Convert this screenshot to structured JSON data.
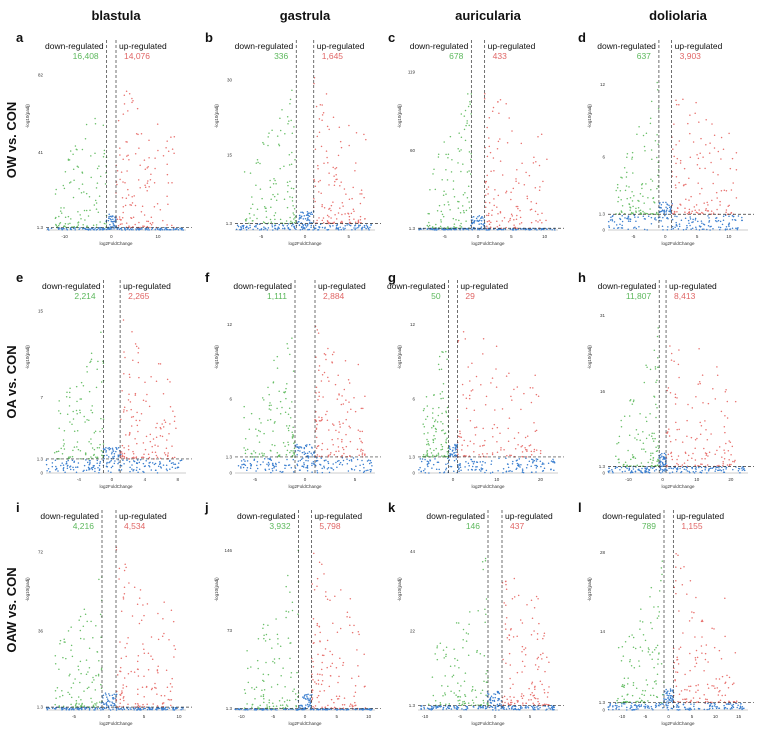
{
  "columns": [
    "blastula",
    "gastrula",
    "auricularia",
    "doliolaria"
  ],
  "rows": [
    "OW vs. CON",
    "OA vs. CON",
    "OAW vs. CON"
  ],
  "labels": {
    "down": "down-regulated",
    "up": "up-regulated"
  },
  "colors": {
    "down": "#6abf69",
    "up": "#e8726f",
    "ns": "#3b7fcf",
    "text_down": "#5cb85c",
    "text_up": "#e06666"
  },
  "chart_data": [
    {
      "type": "scatter",
      "panel": "a",
      "row": "OW vs. CON",
      "column": "blastula",
      "down_count": "16,408",
      "up_count": "14,076",
      "xlabel": "log2FoldChange",
      "ylabel": "-log10(padj)",
      "xticks": [
        "-10",
        "0",
        "10"
      ],
      "yticks": [
        "1.3",
        "41",
        "82"
      ],
      "xlim": [
        -14,
        16
      ],
      "ylim": [
        0,
        90
      ],
      "threshold_x": [
        -1,
        1
      ],
      "threshold_y": 1.3
    },
    {
      "type": "scatter",
      "panel": "b",
      "row": "OW vs. CON",
      "column": "gastrula",
      "down_count": "336",
      "up_count": "1,645",
      "xlabel": "log2FoldChange",
      "ylabel": "-log10(padj)",
      "xticks": [
        "-5",
        "0",
        "5"
      ],
      "yticks": [
        "1.3",
        "15",
        "30"
      ],
      "xlim": [
        -8,
        8
      ],
      "ylim": [
        0,
        34
      ],
      "threshold_x": [
        -1,
        1
      ],
      "threshold_y": 1.3
    },
    {
      "type": "scatter",
      "panel": "c",
      "row": "OW vs. CON",
      "column": "auricularia",
      "down_count": "678",
      "up_count": "433",
      "xlabel": "log2FoldChange",
      "ylabel": "-log10(padj)",
      "xticks": [
        "-5",
        "0",
        "5",
        "10"
      ],
      "yticks": [
        "1.3",
        "60",
        "119"
      ],
      "xlim": [
        -9,
        12
      ],
      "ylim": [
        0,
        128
      ],
      "threshold_x": [
        -1,
        1
      ],
      "threshold_y": 1.3
    },
    {
      "type": "scatter",
      "panel": "d",
      "row": "OW vs. CON",
      "column": "doliolaria",
      "down_count": "637",
      "up_count": "3,903",
      "xlabel": "log2FoldChange",
      "ylabel": "-log10(padj)",
      "xticks": [
        "-5",
        "0",
        "5",
        "10"
      ],
      "yticks": [
        "0",
        "1.3",
        "6",
        "12"
      ],
      "xlim": [
        -9,
        13
      ],
      "ylim": [
        0,
        14
      ],
      "threshold_x": [
        -1,
        1
      ],
      "threshold_y": 1.3
    },
    {
      "type": "scatter",
      "panel": "e",
      "row": "OA vs. CON",
      "column": "blastula",
      "down_count": "2,214",
      "up_count": "2,265",
      "xlabel": "log2FoldChange",
      "ylabel": "-log10(padj)",
      "xticks": [
        "-4",
        "0",
        "4",
        "8"
      ],
      "yticks": [
        "0",
        "1.3",
        "7",
        "15"
      ],
      "xlim": [
        -8,
        9
      ],
      "ylim": [
        0,
        16
      ],
      "threshold_x": [
        -1,
        1
      ],
      "threshold_y": 1.3
    },
    {
      "type": "scatter",
      "panel": "f",
      "row": "OA vs. CON",
      "column": "gastrula",
      "down_count": "1,111",
      "up_count": "2,884",
      "xlabel": "log2FoldChange",
      "ylabel": "-log10(padj)",
      "xticks": [
        "-5",
        "0",
        "5"
      ],
      "yticks": [
        "0",
        "1.3",
        "6",
        "12"
      ],
      "xlim": [
        -7,
        7
      ],
      "ylim": [
        0,
        14
      ],
      "threshold_x": [
        -1,
        1
      ],
      "threshold_y": 1.3
    },
    {
      "type": "scatter",
      "panel": "g",
      "row": "OA vs. CON",
      "column": "auricularia",
      "down_count": "50",
      "up_count": "29",
      "xlabel": "log2FoldChange",
      "ylabel": "-log10(padj)",
      "xticks": [
        "0",
        "10",
        "20"
      ],
      "yticks": [
        "0",
        "1.3",
        "6",
        "12"
      ],
      "xlim": [
        -8,
        24
      ],
      "ylim": [
        0,
        14
      ],
      "threshold_x": [
        -1,
        1
      ],
      "threshold_y": 1.3
    },
    {
      "type": "scatter",
      "panel": "h",
      "row": "OA vs. CON",
      "column": "doliolaria",
      "down_count": "11,807",
      "up_count": "8,413",
      "xlabel": "log2FoldChange",
      "ylabel": "-log10(padj)",
      "xticks": [
        "-10",
        "0",
        "10",
        "20"
      ],
      "yticks": [
        "0",
        "1.3",
        "16",
        "31"
      ],
      "xlim": [
        -16,
        25
      ],
      "ylim": [
        0,
        34
      ],
      "threshold_x": [
        -1,
        1
      ],
      "threshold_y": 1.3
    },
    {
      "type": "scatter",
      "panel": "i",
      "row": "OAW vs. CON",
      "column": "blastula",
      "down_count": "4,216",
      "up_count": "4,534",
      "xlabel": "log2FoldChange",
      "ylabel": "-log10(padj)",
      "xticks": [
        "-5",
        "0",
        "5",
        "10"
      ],
      "yticks": [
        "1.3",
        "36",
        "72"
      ],
      "xlim": [
        -9,
        11
      ],
      "ylim": [
        0,
        82
      ],
      "threshold_x": [
        -1,
        1
      ],
      "threshold_y": 1.3
    },
    {
      "type": "scatter",
      "panel": "j",
      "row": "OAW vs. CON",
      "column": "gastrula",
      "down_count": "3,932",
      "up_count": "5,798",
      "xlabel": "log2FoldChange",
      "ylabel": "-log10(padj)",
      "xticks": [
        "-10",
        "-5",
        "0",
        "5",
        "10"
      ],
      "yticks": [
        "1.3",
        "73",
        "146"
      ],
      "xlim": [
        -11,
        11
      ],
      "ylim": [
        0,
        165
      ],
      "threshold_x": [
        -1,
        1
      ],
      "threshold_y": 1.3
    },
    {
      "type": "scatter",
      "panel": "k",
      "row": "OAW vs. CON",
      "column": "auricularia",
      "down_count": "146",
      "up_count": "437",
      "xlabel": "log2FoldChange",
      "ylabel": "-log10(padj)",
      "xticks": [
        "-10",
        "-5",
        "0",
        "5"
      ],
      "yticks": [
        "1.3",
        "22",
        "44"
      ],
      "xlim": [
        -11,
        9
      ],
      "ylim": [
        0,
        50
      ],
      "threshold_x": [
        -1,
        1
      ],
      "threshold_y": 1.3
    },
    {
      "type": "scatter",
      "panel": "l",
      "row": "OAW vs. CON",
      "column": "doliolaria",
      "down_count": "789",
      "up_count": "1,155",
      "xlabel": "log2FoldChange",
      "ylabel": "-log10(padj)",
      "xticks": [
        "-10",
        "-5",
        "0",
        "5",
        "10",
        "15"
      ],
      "yticks": [
        "0",
        "1.3",
        "14",
        "28"
      ],
      "xlim": [
        -13,
        17
      ],
      "ylim": [
        0,
        32
      ],
      "threshold_x": [
        -1,
        1
      ],
      "threshold_y": 1.3
    }
  ]
}
